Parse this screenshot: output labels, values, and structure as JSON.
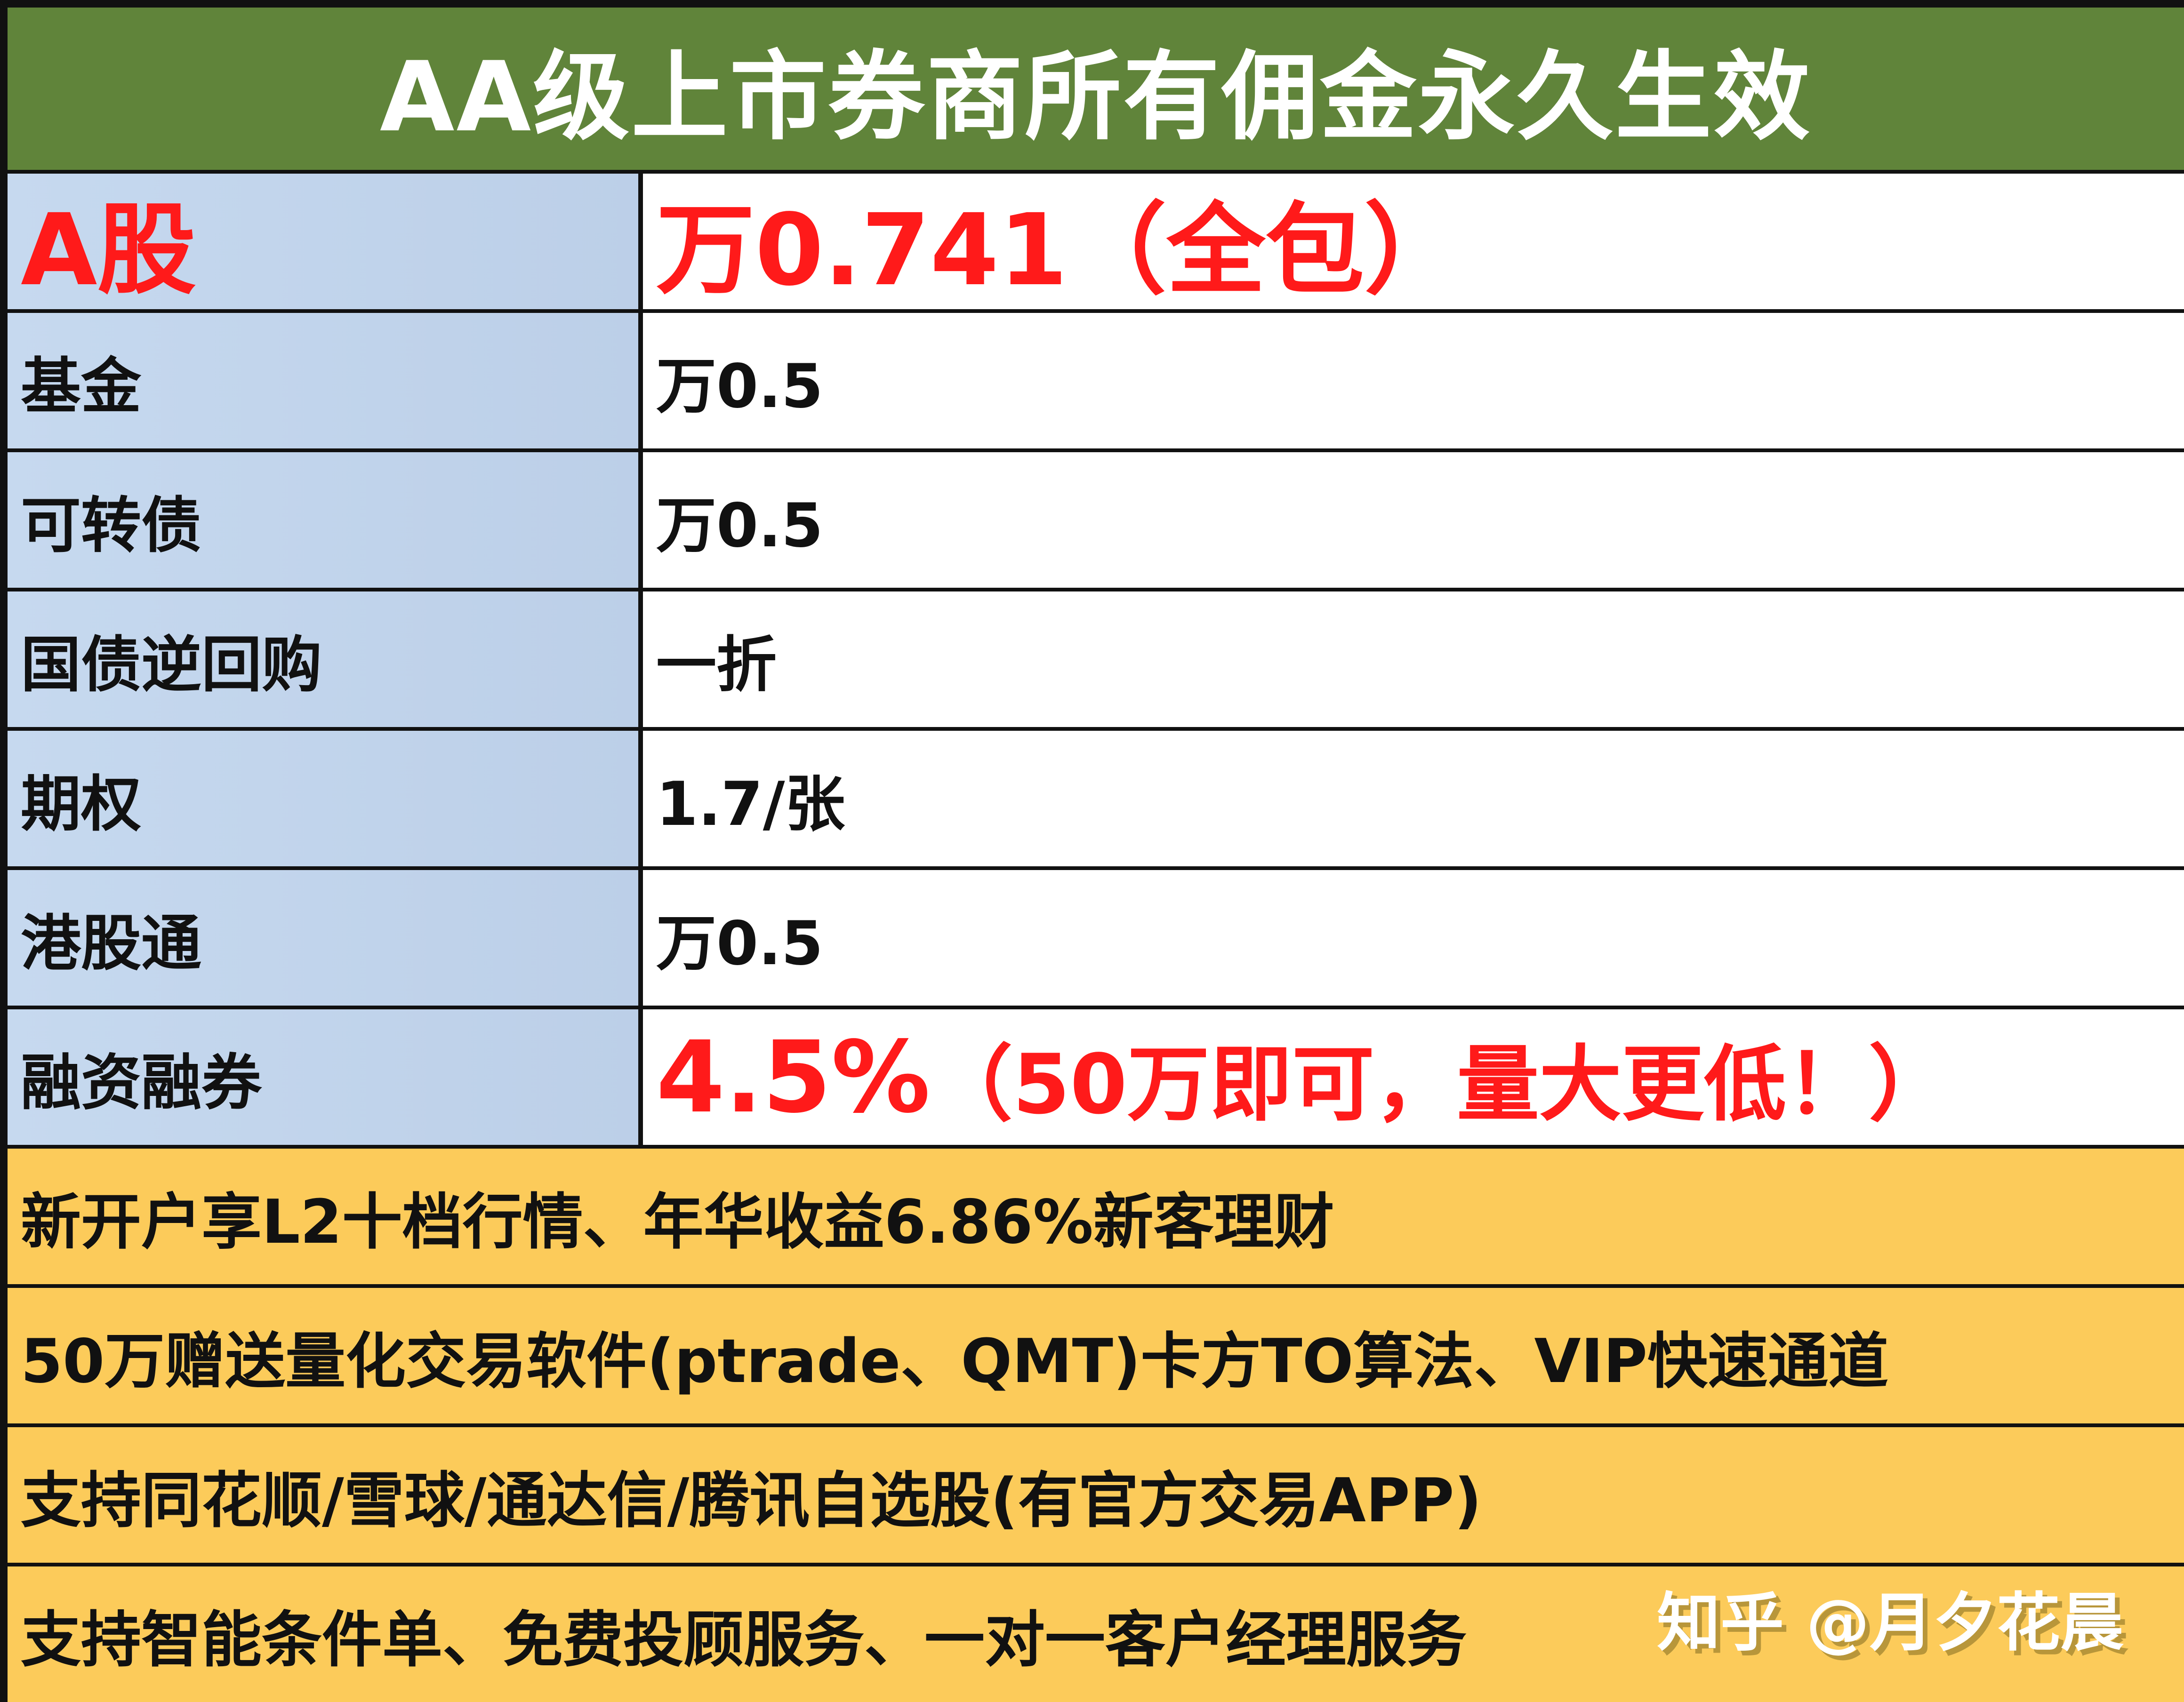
{
  "title": "AA级上市券商所有佣金永久生效",
  "colors": {
    "header_bg": "#60843a",
    "label_bg": "#c3d6ec",
    "note_bg": "#fccb5a",
    "highlight": "#ff1a1a"
  },
  "rates": [
    {
      "label": "A股",
      "value": "万0.741（全包）"
    },
    {
      "label": "基金",
      "value": "万0.5"
    },
    {
      "label": "可转债",
      "value": "万0.5"
    },
    {
      "label": "国债逆回购",
      "value": "一折"
    },
    {
      "label": "期权",
      "value": "1.7/张"
    },
    {
      "label": "港股通",
      "value": "万0.5"
    },
    {
      "label": "融资融券",
      "value_main": "4.5%",
      "value_note": "（50万即可，量大更低！）"
    }
  ],
  "notes": [
    "新开户享L2十档行情、年华收益6.86%新客理财",
    "50万赠送量化交易软件(ptrade、QMT)卡方TO算法、VIP快速通道",
    "支持同花顺/雪球/通达信/腾讯自选股(有官方交易APP)",
    "支持智能条件单、免费投顾服务、一对一客户经理服务"
  ],
  "watermark": "知乎 @月夕花晨"
}
